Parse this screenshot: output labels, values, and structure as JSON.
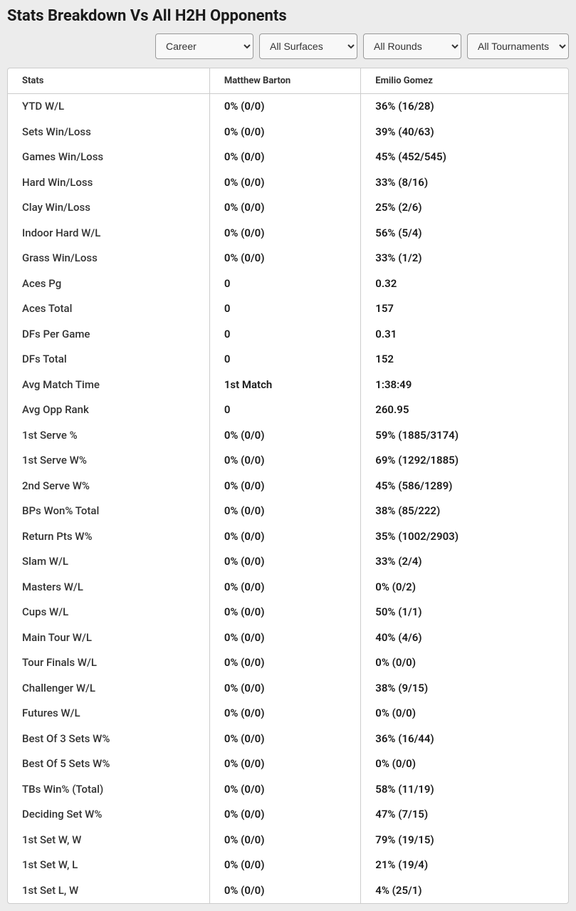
{
  "title": "Stats Breakdown Vs All H2H Opponents",
  "filters": {
    "period": "Career",
    "surface": "All Surfaces",
    "round": "All Rounds",
    "tournament": "All Tournaments"
  },
  "table": {
    "columns": [
      "Stats",
      "Matthew Barton",
      "Emilio Gomez"
    ],
    "rows": [
      [
        "YTD W/L",
        "0% (0/0)",
        "36% (16/28)"
      ],
      [
        "Sets Win/Loss",
        "0% (0/0)",
        "39% (40/63)"
      ],
      [
        "Games Win/Loss",
        "0% (0/0)",
        "45% (452/545)"
      ],
      [
        "Hard Win/Loss",
        "0% (0/0)",
        "33% (8/16)"
      ],
      [
        "Clay Win/Loss",
        "0% (0/0)",
        "25% (2/6)"
      ],
      [
        "Indoor Hard W/L",
        "0% (0/0)",
        "56% (5/4)"
      ],
      [
        "Grass Win/Loss",
        "0% (0/0)",
        "33% (1/2)"
      ],
      [
        "Aces Pg",
        "0",
        "0.32"
      ],
      [
        "Aces Total",
        "0",
        "157"
      ],
      [
        "DFs Per Game",
        "0",
        "0.31"
      ],
      [
        "DFs Total",
        "0",
        "152"
      ],
      [
        "Avg Match Time",
        "1st Match",
        "1:38:49"
      ],
      [
        "Avg Opp Rank",
        "0",
        "260.95"
      ],
      [
        "1st Serve %",
        "0% (0/0)",
        "59% (1885/3174)"
      ],
      [
        "1st Serve W%",
        "0% (0/0)",
        "69% (1292/1885)"
      ],
      [
        "2nd Serve W%",
        "0% (0/0)",
        "45% (586/1289)"
      ],
      [
        "BPs Won% Total",
        "0% (0/0)",
        "38% (85/222)"
      ],
      [
        "Return Pts W%",
        "0% (0/0)",
        "35% (1002/2903)"
      ],
      [
        "Slam W/L",
        "0% (0/0)",
        "33% (2/4)"
      ],
      [
        "Masters W/L",
        "0% (0/0)",
        "0% (0/2)"
      ],
      [
        "Cups W/L",
        "0% (0/0)",
        "50% (1/1)"
      ],
      [
        "Main Tour W/L",
        "0% (0/0)",
        "40% (4/6)"
      ],
      [
        "Tour Finals W/L",
        "0% (0/0)",
        "0% (0/0)"
      ],
      [
        "Challenger W/L",
        "0% (0/0)",
        "38% (9/15)"
      ],
      [
        "Futures W/L",
        "0% (0/0)",
        "0% (0/0)"
      ],
      [
        "Best Of 3 Sets W%",
        "0% (0/0)",
        "36% (16/44)"
      ],
      [
        "Best Of 5 Sets W%",
        "0% (0/0)",
        "0% (0/0)"
      ],
      [
        "TBs Win% (Total)",
        "0% (0/0)",
        "58% (11/19)"
      ],
      [
        "Deciding Set W%",
        "0% (0/0)",
        "47% (7/15)"
      ],
      [
        "1st Set W, W",
        "0% (0/0)",
        "79% (19/15)"
      ],
      [
        "1st Set W, L",
        "0% (0/0)",
        "21% (19/4)"
      ],
      [
        "1st Set L, W",
        "0% (0/0)",
        "4% (25/1)"
      ]
    ]
  }
}
